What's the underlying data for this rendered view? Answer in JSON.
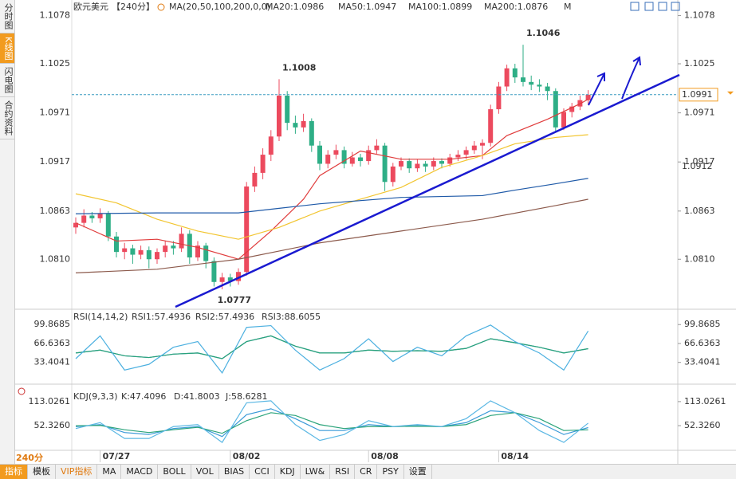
{
  "sidebar": [
    "分时图",
    "K线图",
    "闪电图",
    "合约资料"
  ],
  "period_button": "240分",
  "toolbar": [
    "指标",
    "模板",
    "VIP指标",
    "MA",
    "MACD",
    "BOLL",
    "VOL",
    "BIAS",
    "CCI",
    "KDJ",
    "LW&",
    "RSI",
    "CR",
    "PSY",
    "设置"
  ],
  "chart_data": [
    {
      "type": "candlestick",
      "title": "欧元美元",
      "period": "【240分】",
      "indicator": "MA(20,50,100,200,0,0)",
      "extra": "M",
      "categories": [
        null,
        null,
        null,
        "07/27",
        null,
        null,
        null,
        null,
        null,
        null,
        null,
        null,
        null,
        null,
        null,
        null,
        null,
        null,
        null,
        "08/02",
        null,
        null,
        null,
        null,
        null,
        null,
        null,
        null,
        null,
        null,
        null,
        null,
        null,
        null,
        null,
        null,
        "08/08",
        null,
        null,
        null,
        null,
        null,
        null,
        null,
        null,
        null,
        null,
        null,
        null,
        null,
        null,
        null,
        "08/14",
        null,
        null,
        null,
        null,
        null,
        null,
        null,
        null,
        null,
        null,
        null
      ],
      "candles": [
        [
          1.0845,
          1.0856,
          1.0838,
          1.085
        ],
        [
          1.085,
          1.0865,
          1.0845,
          1.0858
        ],
        [
          1.0858,
          1.0862,
          1.085,
          1.0855
        ],
        [
          1.0855,
          1.0866,
          1.085,
          1.086
        ],
        [
          1.086,
          1.0863,
          1.083,
          1.0835
        ],
        [
          1.0835,
          1.084,
          1.0812,
          1.0818
        ],
        [
          1.0818,
          1.0828,
          1.081,
          1.0822
        ],
        [
          1.0822,
          1.0826,
          1.0805,
          1.0815
        ],
        [
          1.0815,
          1.0825,
          1.081,
          1.082
        ],
        [
          1.082,
          1.0824,
          1.08,
          1.081
        ],
        [
          1.081,
          1.0822,
          1.0805,
          1.0818
        ],
        [
          1.0818,
          1.083,
          1.0812,
          1.0825
        ],
        [
          1.0825,
          1.083,
          1.0815,
          1.0822
        ],
        [
          1.0822,
          1.0845,
          1.0818,
          1.0838
        ],
        [
          1.0838,
          1.0842,
          1.0805,
          1.0812
        ],
        [
          1.0812,
          1.083,
          1.0808,
          1.0825
        ],
        [
          1.0825,
          1.0828,
          1.08,
          1.0808
        ],
        [
          1.0808,
          1.0812,
          1.078,
          1.0785
        ],
        [
          1.0785,
          1.0795,
          1.0777,
          1.079
        ],
        [
          1.079,
          1.0794,
          1.078,
          1.0786
        ],
        [
          1.0786,
          1.08,
          1.0782,
          1.0796
        ],
        [
          1.0796,
          1.0895,
          1.0792,
          1.089
        ],
        [
          1.089,
          1.0912,
          1.0884,
          1.0905
        ],
        [
          1.0905,
          1.0932,
          1.0898,
          1.0925
        ],
        [
          1.0925,
          1.0952,
          1.0918,
          1.0945
        ],
        [
          1.0945,
          1.1008,
          1.094,
          1.099
        ],
        [
          1.099,
          1.0995,
          1.0952,
          1.096
        ],
        [
          1.096,
          1.0968,
          1.0948,
          1.0955
        ],
        [
          1.0955,
          1.097,
          1.095,
          1.0962
        ],
        [
          1.0962,
          1.0965,
          1.0928,
          1.0935
        ],
        [
          1.0935,
          1.094,
          1.0908,
          1.0915
        ],
        [
          1.0915,
          1.093,
          1.091,
          1.0925
        ],
        [
          1.0925,
          1.0936,
          1.092,
          1.093
        ],
        [
          1.093,
          1.0934,
          1.091,
          1.0915
        ],
        [
          1.0915,
          1.0928,
          1.0912,
          1.0922
        ],
        [
          1.0922,
          1.0926,
          1.0912,
          1.0918
        ],
        [
          1.0918,
          1.0935,
          1.0914,
          1.093
        ],
        [
          1.093,
          1.0942,
          1.0926,
          1.0935
        ],
        [
          1.0935,
          1.0938,
          1.0885,
          1.0895
        ],
        [
          1.0895,
          1.0916,
          1.089,
          1.0912
        ],
        [
          1.0912,
          1.0922,
          1.0908,
          1.0918
        ],
        [
          1.0918,
          1.0921,
          1.0905,
          1.091
        ],
        [
          1.091,
          1.092,
          1.0906,
          1.0915
        ],
        [
          1.0915,
          1.0918,
          1.0906,
          1.0912
        ],
        [
          1.0912,
          1.0922,
          1.0908,
          1.0918
        ],
        [
          1.0918,
          1.0921,
          1.091,
          1.0915
        ],
        [
          1.0915,
          1.0926,
          1.0912,
          1.0922
        ],
        [
          1.0922,
          1.093,
          1.0918,
          1.0925
        ],
        [
          1.0925,
          1.0934,
          1.092,
          1.093
        ],
        [
          1.093,
          1.094,
          1.0926,
          1.0935
        ],
        [
          1.0935,
          1.0942,
          1.092,
          1.0938
        ],
        [
          1.0938,
          1.098,
          1.0934,
          1.0975
        ],
        [
          1.0975,
          1.1005,
          1.097,
          1.1
        ],
        [
          1.1,
          1.1024,
          1.0995,
          1.102
        ],
        [
          1.102,
          1.1025,
          1.1004,
          1.101
        ],
        [
          1.101,
          1.1046,
          1.1,
          1.1005
        ],
        [
          1.1005,
          1.1012,
          1.0996,
          1.1002
        ],
        [
          1.1002,
          1.1008,
          1.0994,
          1.1
        ],
        [
          1.1,
          1.1004,
          1.0985,
          1.0995
        ],
        [
          1.0995,
          1.0998,
          1.095,
          1.0955
        ],
        [
          1.0955,
          1.0976,
          1.0952,
          1.0972
        ],
        [
          1.0972,
          1.0982,
          1.0966,
          1.0978
        ],
        [
          1.0978,
          1.099,
          1.0974,
          1.0985
        ],
        [
          1.0985,
          1.0996,
          1.098,
          1.0991
        ]
      ],
      "up_color": "#ec4a5e",
      "down_color": "#2eae86",
      "series": [
        {
          "name": "MA20:1.0986",
          "color": "#e03c3c",
          "x": [
            0,
            5,
            10,
            15,
            20,
            24,
            28,
            30,
            35,
            40,
            46,
            50,
            53,
            58,
            62,
            63
          ],
          "values": [
            1.085,
            1.083,
            1.0832,
            1.0823,
            1.081,
            1.0841,
            1.0876,
            1.0902,
            1.0929,
            1.092,
            1.092,
            1.0924,
            1.0946,
            1.0964,
            1.0981,
            1.0986
          ]
        },
        {
          "name": "MA50:1.0947",
          "color": "#f2c530",
          "x": [
            0,
            5,
            10,
            15,
            20,
            25,
            30,
            35,
            40,
            45,
            50,
            54,
            59,
            63
          ],
          "values": [
            1.0882,
            1.0872,
            1.0854,
            1.0841,
            1.0832,
            1.0845,
            1.0863,
            1.0876,
            1.0889,
            1.0911,
            1.0924,
            1.0937,
            1.0944,
            1.0947
          ]
        },
        {
          "name": "MA100:1.0899",
          "color": "#1f5aa8",
          "x": [
            0,
            10,
            20,
            25,
            30,
            40,
            50,
            54,
            59,
            63
          ],
          "values": [
            1.086,
            1.0861,
            1.0861,
            1.0866,
            1.0871,
            1.0878,
            1.088,
            1.0886,
            1.0893,
            1.0899
          ]
        },
        {
          "name": "MA200:1.0876",
          "color": "#8c5a4c",
          "x": [
            0,
            10,
            20,
            30,
            40,
            50,
            59,
            63
          ],
          "values": [
            1.0795,
            1.0799,
            1.081,
            1.0828,
            1.0841,
            1.0854,
            1.0869,
            1.0876
          ]
        }
      ],
      "ylim": [
        1.0755,
        1.1082
      ],
      "yticks": [
        1.1078,
        1.1025,
        1.0971,
        1.0917,
        1.0863,
        {
          "value": 1.081,
          "label": "1.0810"
        }
      ],
      "price_tags": [
        1.0991,
        1.0912
      ]
    },
    {
      "type": "line",
      "title": "RSI(14,14,2)",
      "ylim": [
        -2,
        124
      ],
      "yticks": [
        99.8685,
        66.6363,
        33.4041
      ],
      "series": [
        {
          "name": "RSI1:57.4936",
          "color": "#2a8fb0",
          "x": [
            0,
            3,
            6,
            9,
            12,
            15,
            18,
            21,
            24,
            27,
            30,
            33,
            36,
            39,
            42,
            45,
            48,
            51,
            54,
            57,
            60,
            63
          ],
          "values": [
            50,
            55,
            45,
            42,
            48,
            50,
            40,
            70,
            80,
            62,
            50,
            50,
            55,
            53,
            54,
            53,
            58,
            75,
            68,
            60,
            50,
            57.4936
          ]
        },
        {
          "name": "RSI2:57.4936",
          "color": "#2aa37a",
          "x": [
            0,
            3,
            6,
            9,
            12,
            15,
            18,
            21,
            24,
            27,
            30,
            33,
            36,
            39,
            42,
            45,
            48,
            51,
            54,
            57,
            60,
            63
          ],
          "values": [
            50,
            55,
            45,
            42,
            48,
            50,
            40,
            70,
            80,
            62,
            50,
            50,
            55,
            53,
            54,
            53,
            58,
            75,
            68,
            60,
            50,
            57.4936
          ]
        },
        {
          "name": "RSI3:88.6055",
          "color": "#4cb0e0",
          "x": [
            0,
            3,
            6,
            9,
            12,
            15,
            18,
            21,
            24,
            27,
            30,
            33,
            36,
            39,
            42,
            45,
            48,
            51,
            54,
            57,
            60,
            63
          ],
          "values": [
            40,
            80,
            20,
            30,
            60,
            70,
            15,
            95,
            98,
            55,
            20,
            40,
            75,
            35,
            60,
            45,
            80,
            99,
            70,
            50,
            20,
            88.6055
          ]
        }
      ]
    },
    {
      "type": "line",
      "title": "KDJ(9,3,3)",
      "ylim": [
        -20,
        141
      ],
      "yticks": [
        113.0261,
        {
          "value": 52.326,
          "label": "52.3260"
        }
      ],
      "series": [
        {
          "name": "K:47.4096",
          "color": "#3a9ad8",
          "x": [
            0,
            3,
            6,
            9,
            12,
            15,
            18,
            21,
            24,
            27,
            30,
            33,
            36,
            39,
            42,
            45,
            48,
            51,
            54,
            57,
            60,
            63
          ],
          "values": [
            50,
            55,
            35,
            30,
            45,
            50,
            25,
            80,
            95,
            70,
            40,
            40,
            55,
            50,
            52,
            50,
            60,
            90,
            85,
            60,
            30,
            47.4096
          ]
        },
        {
          "name": "D:41.8003",
          "color": "#2aa37a",
          "x": [
            0,
            3,
            6,
            9,
            12,
            15,
            18,
            21,
            24,
            27,
            30,
            33,
            36,
            39,
            42,
            45,
            48,
            51,
            54,
            57,
            60,
            63
          ],
          "values": [
            52,
            53,
            42,
            35,
            42,
            48,
            33,
            65,
            85,
            78,
            55,
            45,
            50,
            50,
            51,
            50,
            55,
            78,
            85,
            70,
            40,
            41.8003
          ]
        },
        {
          "name": "J:58.6281",
          "color": "#5cb8e4",
          "x": [
            0,
            3,
            6,
            9,
            12,
            15,
            18,
            21,
            24,
            27,
            30,
            33,
            36,
            39,
            42,
            45,
            48,
            51,
            54,
            57,
            60,
            63
          ],
          "values": [
            45,
            60,
            20,
            20,
            50,
            55,
            10,
            110,
            115,
            55,
            15,
            30,
            65,
            50,
            55,
            50,
            70,
            115,
            85,
            40,
            10,
            58.6281
          ]
        }
      ]
    }
  ]
}
